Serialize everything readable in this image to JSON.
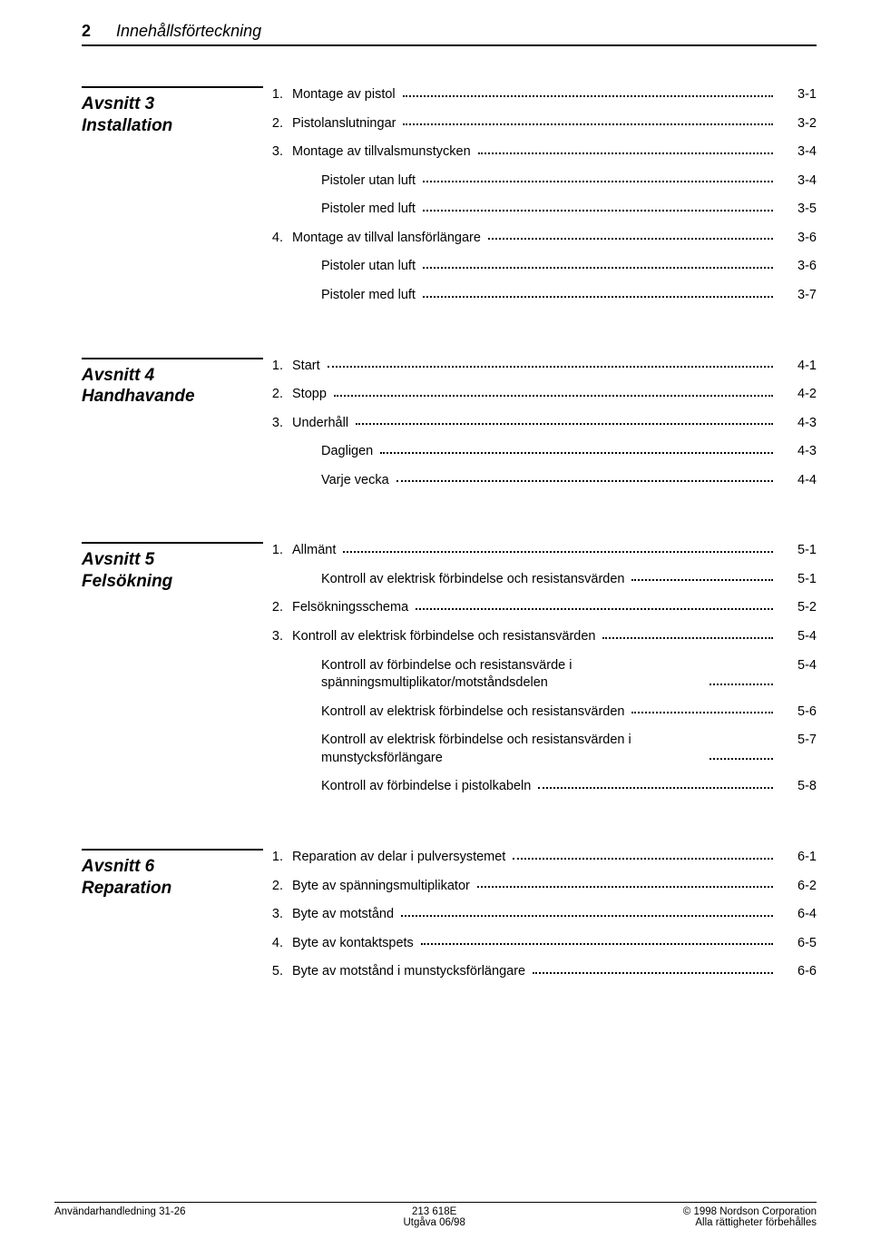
{
  "header": {
    "page_number": "2",
    "title": "Innehållsförteckning"
  },
  "sections": [
    {
      "heading": [
        "Avsnitt 3",
        "Installation"
      ],
      "items": [
        {
          "n": "1.",
          "label": "Montage av pistol",
          "pg": "3-1"
        },
        {
          "n": "2.",
          "label": "Pistolanslutningar",
          "pg": "3-2"
        },
        {
          "n": "3.",
          "label": "Montage av tillvalsmunstycken",
          "pg": "3-4"
        },
        {
          "n": "",
          "label": "Pistoler utan luft",
          "pg": "3-4",
          "indent": 1
        },
        {
          "n": "",
          "label": "Pistoler med luft",
          "pg": "3-5",
          "indent": 1
        },
        {
          "n": "4.",
          "label": "Montage av tillval lansförlängare",
          "pg": "3-6"
        },
        {
          "n": "",
          "label": "Pistoler utan luft",
          "pg": "3-6",
          "indent": 1
        },
        {
          "n": "",
          "label": "Pistoler med luft",
          "pg": "3-7",
          "indent": 1
        }
      ]
    },
    {
      "heading": [
        "Avsnitt 4",
        "Handhavande"
      ],
      "items": [
        {
          "n": "1.",
          "label": "Start",
          "pg": "4-1"
        },
        {
          "n": "2.",
          "label": "Stopp",
          "pg": "4-2"
        },
        {
          "n": "3.",
          "label": "Underhåll",
          "pg": "4-3"
        },
        {
          "n": "",
          "label": "Dagligen",
          "pg": "4-3",
          "indent": 1
        },
        {
          "n": "",
          "label": "Varje vecka",
          "pg": "4-4",
          "indent": 1
        }
      ]
    },
    {
      "heading": [
        "Avsnitt 5",
        "Felsökning"
      ],
      "items": [
        {
          "n": "1.",
          "label": "Allmänt",
          "pg": "5-1"
        },
        {
          "n": "",
          "label": "Kontroll av elektrisk förbindelse och resistansvärden",
          "pg": "5-1",
          "indent": 1
        },
        {
          "n": "2.",
          "label": "Felsökningsschema",
          "pg": "5-2"
        },
        {
          "n": "3.",
          "label": "Kontroll av elektrisk förbindelse och resistansvärden",
          "pg": "5-4"
        },
        {
          "n": "",
          "label": "Kontroll av förbindelse och resistansvärde i spänningsmultiplikator/motståndsdelen",
          "pg": "5-4",
          "indent": 1,
          "multi": true
        },
        {
          "n": "",
          "label": "Kontroll av elektrisk förbindelse och resistansvärden",
          "pg": "5-6",
          "indent": 1
        },
        {
          "n": "",
          "label": "Kontroll av elektrisk förbindelse och resistansvärden i munstycksförlängare",
          "pg": "5-7",
          "indent": 1,
          "multi": true
        },
        {
          "n": "",
          "label": "Kontroll av förbindelse i pistolkabeln",
          "pg": "5-8",
          "indent": 1
        }
      ]
    },
    {
      "heading": [
        "Avsnitt 6",
        "Reparation"
      ],
      "items": [
        {
          "n": "1.",
          "label": "Reparation av delar i pulversystemet",
          "pg": "6-1"
        },
        {
          "n": "2.",
          "label": "Byte av spänningsmultiplikator",
          "pg": "6-2"
        },
        {
          "n": "3.",
          "label": "Byte av motstånd",
          "pg": "6-4"
        },
        {
          "n": "4.",
          "label": "Byte av kontaktspets",
          "pg": "6-5"
        },
        {
          "n": "5.",
          "label": "Byte av motstånd i munstycksförlängare",
          "pg": "6-6"
        }
      ]
    }
  ],
  "footer": {
    "left": "Användarhandledning 31-26",
    "center_line1": "213 618E",
    "center_line2": "Utgåva 06/98",
    "right_line1": "© 1998 Nordson Corporation",
    "right_line2": "Alla rättigheter förbehålles"
  }
}
